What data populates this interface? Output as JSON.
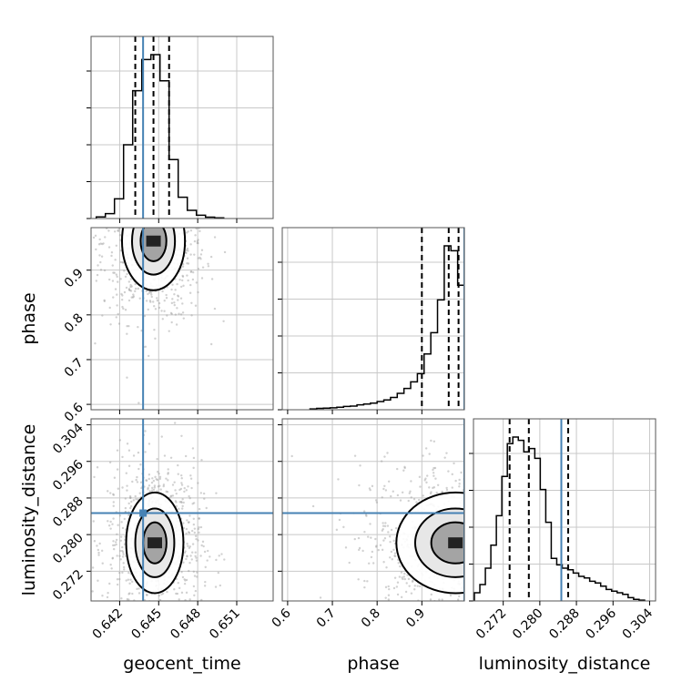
{
  "chart_data": {
    "type": "corner",
    "parameters": [
      "geocent_time",
      "phase",
      "luminosity_distance"
    ],
    "axis_labels": {
      "geocent_time": "geocent_time",
      "phase": "phase",
      "luminosity_distance": "luminosity_distance"
    },
    "ranges": {
      "geocent_time": [
        0.6398,
        0.6538
      ],
      "phase": [
        0.588,
        0.995
      ],
      "luminosity_distance": [
        0.2655,
        0.3053
      ]
    },
    "ticks": {
      "geocent_time": [
        "0.642",
        "0.645",
        "0.648",
        "0.651"
      ],
      "phase": [
        "0.6",
        "0.7",
        "0.8",
        "0.9"
      ],
      "luminosity_distance": [
        "0.272",
        "0.280",
        "0.288",
        "0.296",
        "0.304"
      ]
    },
    "truths": {
      "geocent_time": 0.6438,
      "phase": 0.995,
      "luminosity_distance": 0.2847
    },
    "quantiles": {
      "geocent_time": [
        0.6432,
        0.6446,
        0.6458
      ],
      "phase": [
        0.9,
        0.96,
        0.982
      ],
      "luminosity_distance": [
        0.2734,
        0.2776,
        0.2862
      ]
    },
    "histograms": {
      "geocent_time": {
        "edges": [
          0.6402,
          0.6409,
          0.6416,
          0.6423,
          0.643,
          0.6437,
          0.6444,
          0.6451,
          0.6458,
          0.6465,
          0.6472,
          0.6479,
          0.6486,
          0.6493,
          0.65
        ],
        "counts": [
          0.01,
          0.03,
          0.12,
          0.45,
          0.78,
          0.97,
          1.0,
          0.84,
          0.36,
          0.13,
          0.05,
          0.02,
          0.008,
          0.004
        ]
      },
      "phase": {
        "edges": [
          0.65,
          0.665,
          0.68,
          0.695,
          0.71,
          0.725,
          0.74,
          0.755,
          0.77,
          0.785,
          0.8,
          0.815,
          0.83,
          0.845,
          0.86,
          0.875,
          0.89,
          0.905,
          0.92,
          0.935,
          0.95,
          0.965,
          0.98,
          0.995
        ],
        "counts": [
          0.005,
          0.008,
          0.01,
          0.012,
          0.015,
          0.02,
          0.022,
          0.03,
          0.035,
          0.04,
          0.05,
          0.06,
          0.075,
          0.1,
          0.13,
          0.17,
          0.22,
          0.34,
          0.47,
          0.67,
          1.0,
          0.97,
          0.76
        ]
      },
      "luminosity_distance": {
        "edges": [
          0.2657,
          0.2669,
          0.2681,
          0.2693,
          0.2705,
          0.2717,
          0.2729,
          0.2741,
          0.2753,
          0.2765,
          0.2777,
          0.2789,
          0.2801,
          0.2813,
          0.2825,
          0.2837,
          0.2849,
          0.2861,
          0.2873,
          0.2885,
          0.2897,
          0.2909,
          0.2921,
          0.2933,
          0.2945,
          0.2957,
          0.2969,
          0.2981,
          0.2993,
          0.3005,
          0.3017,
          0.3029
        ],
        "counts": [
          0.05,
          0.1,
          0.2,
          0.34,
          0.52,
          0.76,
          0.96,
          1.0,
          0.98,
          0.91,
          0.93,
          0.87,
          0.68,
          0.48,
          0.26,
          0.22,
          0.2,
          0.19,
          0.17,
          0.15,
          0.14,
          0.12,
          0.11,
          0.09,
          0.07,
          0.06,
          0.05,
          0.04,
          0.02,
          0.01,
          0.005
        ]
      }
    },
    "density_centers": {
      "phase_vs_geocent_time": {
        "x": 0.6446,
        "y": 0.965,
        "sx": 0.0011,
        "sy": 0.05
      },
      "luminosity_distance_vs_geocent_time": {
        "x": 0.6447,
        "y": 0.2782,
        "sx": 0.001,
        "sy": 0.005
      },
      "luminosity_distance_vs_phase": {
        "x": 0.975,
        "y": 0.2782,
        "sx": 0.06,
        "sy": 0.005
      }
    },
    "grid": true,
    "colors": {
      "hist": "#000000",
      "truth": "#4682b4",
      "points": "#9a9a9a",
      "grid": "#c8c8c8",
      "frame": "#555555"
    }
  }
}
